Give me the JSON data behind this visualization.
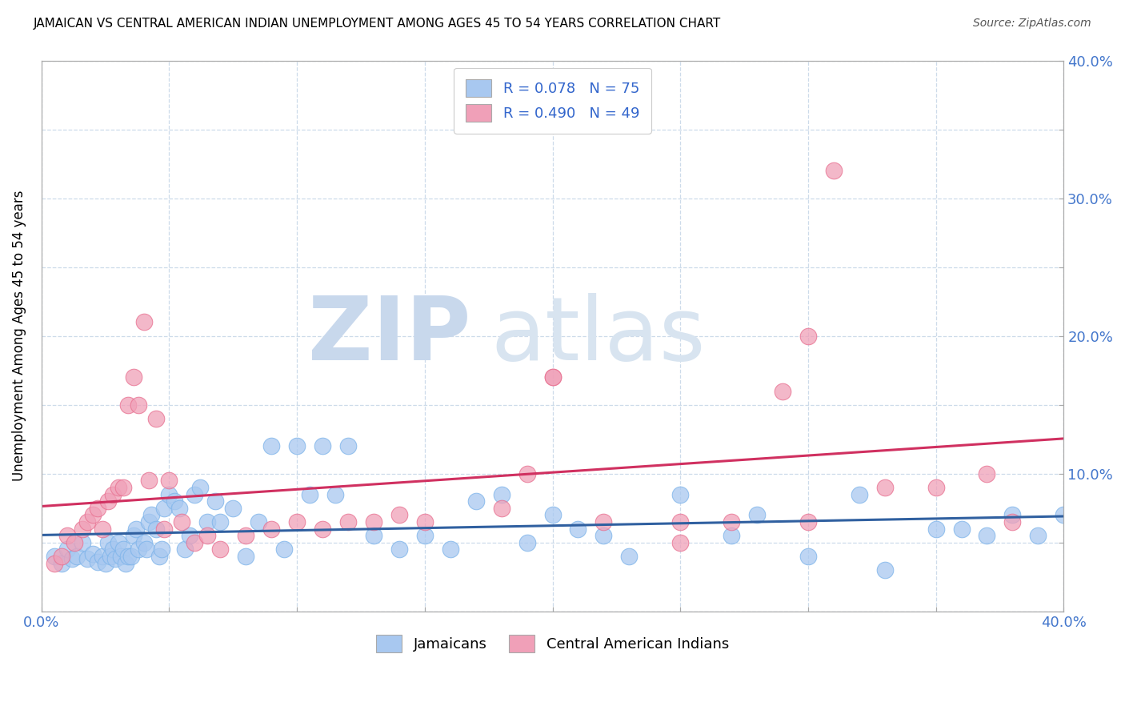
{
  "title": "JAMAICAN VS CENTRAL AMERICAN INDIAN UNEMPLOYMENT AMONG AGES 45 TO 54 YEARS CORRELATION CHART",
  "source": "Source: ZipAtlas.com",
  "ylabel": "Unemployment Among Ages 45 to 54 years",
  "xlim": [
    0.0,
    0.4
  ],
  "ylim": [
    0.0,
    0.4
  ],
  "x_ticks": [
    0.0,
    0.05,
    0.1,
    0.15,
    0.2,
    0.25,
    0.3,
    0.35,
    0.4
  ],
  "y_ticks": [
    0.0,
    0.05,
    0.1,
    0.15,
    0.2,
    0.25,
    0.3,
    0.35,
    0.4
  ],
  "right_y_tick_labels": [
    "",
    "",
    "10.0%",
    "",
    "20.0%",
    "",
    "30.0%",
    "",
    "40.0%"
  ],
  "blue_color": "#A8C8F0",
  "pink_color": "#F0A0B8",
  "blue_edge_color": "#7EB4EA",
  "pink_edge_color": "#E87090",
  "blue_line_color": "#3060A0",
  "pink_line_color": "#D03060",
  "blue_R": 0.078,
  "blue_N": 75,
  "pink_R": 0.49,
  "pink_N": 49,
  "tick_label_color": "#4477CC",
  "legend_label_color": "#3366CC",
  "blue_scatter_x": [
    0.005,
    0.008,
    0.01,
    0.012,
    0.014,
    0.016,
    0.018,
    0.02,
    0.022,
    0.024,
    0.025,
    0.026,
    0.027,
    0.028,
    0.029,
    0.03,
    0.031,
    0.032,
    0.033,
    0.034,
    0.035,
    0.036,
    0.037,
    0.038,
    0.04,
    0.041,
    0.042,
    0.043,
    0.045,
    0.046,
    0.047,
    0.048,
    0.05,
    0.052,
    0.054,
    0.056,
    0.058,
    0.06,
    0.062,
    0.065,
    0.068,
    0.07,
    0.075,
    0.08,
    0.085,
    0.09,
    0.095,
    0.1,
    0.105,
    0.11,
    0.115,
    0.12,
    0.13,
    0.14,
    0.15,
    0.16,
    0.17,
    0.18,
    0.19,
    0.2,
    0.21,
    0.22,
    0.23,
    0.25,
    0.27,
    0.28,
    0.3,
    0.32,
    0.33,
    0.35,
    0.36,
    0.37,
    0.38,
    0.39,
    0.4
  ],
  "blue_scatter_y": [
    0.04,
    0.035,
    0.045,
    0.038,
    0.04,
    0.05,
    0.038,
    0.042,
    0.036,
    0.04,
    0.035,
    0.05,
    0.04,
    0.045,
    0.038,
    0.05,
    0.04,
    0.045,
    0.035,
    0.04,
    0.04,
    0.055,
    0.06,
    0.045,
    0.05,
    0.045,
    0.065,
    0.07,
    0.06,
    0.04,
    0.045,
    0.075,
    0.085,
    0.08,
    0.075,
    0.045,
    0.055,
    0.085,
    0.09,
    0.065,
    0.08,
    0.065,
    0.075,
    0.04,
    0.065,
    0.12,
    0.045,
    0.12,
    0.085,
    0.12,
    0.085,
    0.12,
    0.055,
    0.045,
    0.055,
    0.045,
    0.08,
    0.085,
    0.05,
    0.07,
    0.06,
    0.055,
    0.04,
    0.085,
    0.055,
    0.07,
    0.04,
    0.085,
    0.03,
    0.06,
    0.06,
    0.055,
    0.07,
    0.055,
    0.07
  ],
  "pink_scatter_x": [
    0.005,
    0.008,
    0.01,
    0.013,
    0.016,
    0.018,
    0.02,
    0.022,
    0.024,
    0.026,
    0.028,
    0.03,
    0.032,
    0.034,
    0.036,
    0.038,
    0.04,
    0.042,
    0.045,
    0.048,
    0.05,
    0.055,
    0.06,
    0.065,
    0.07,
    0.08,
    0.09,
    0.1,
    0.11,
    0.12,
    0.13,
    0.14,
    0.18,
    0.19,
    0.2,
    0.22,
    0.25,
    0.27,
    0.29,
    0.3,
    0.31,
    0.33,
    0.35,
    0.37,
    0.38,
    0.3,
    0.15,
    0.2,
    0.25
  ],
  "pink_scatter_y": [
    0.035,
    0.04,
    0.055,
    0.05,
    0.06,
    0.065,
    0.07,
    0.075,
    0.06,
    0.08,
    0.085,
    0.09,
    0.09,
    0.15,
    0.17,
    0.15,
    0.21,
    0.095,
    0.14,
    0.06,
    0.095,
    0.065,
    0.05,
    0.055,
    0.045,
    0.055,
    0.06,
    0.065,
    0.06,
    0.065,
    0.065,
    0.07,
    0.075,
    0.1,
    0.17,
    0.065,
    0.05,
    0.065,
    0.16,
    0.065,
    0.32,
    0.09,
    0.09,
    0.1,
    0.065,
    0.2,
    0.065,
    0.17,
    0.065
  ]
}
